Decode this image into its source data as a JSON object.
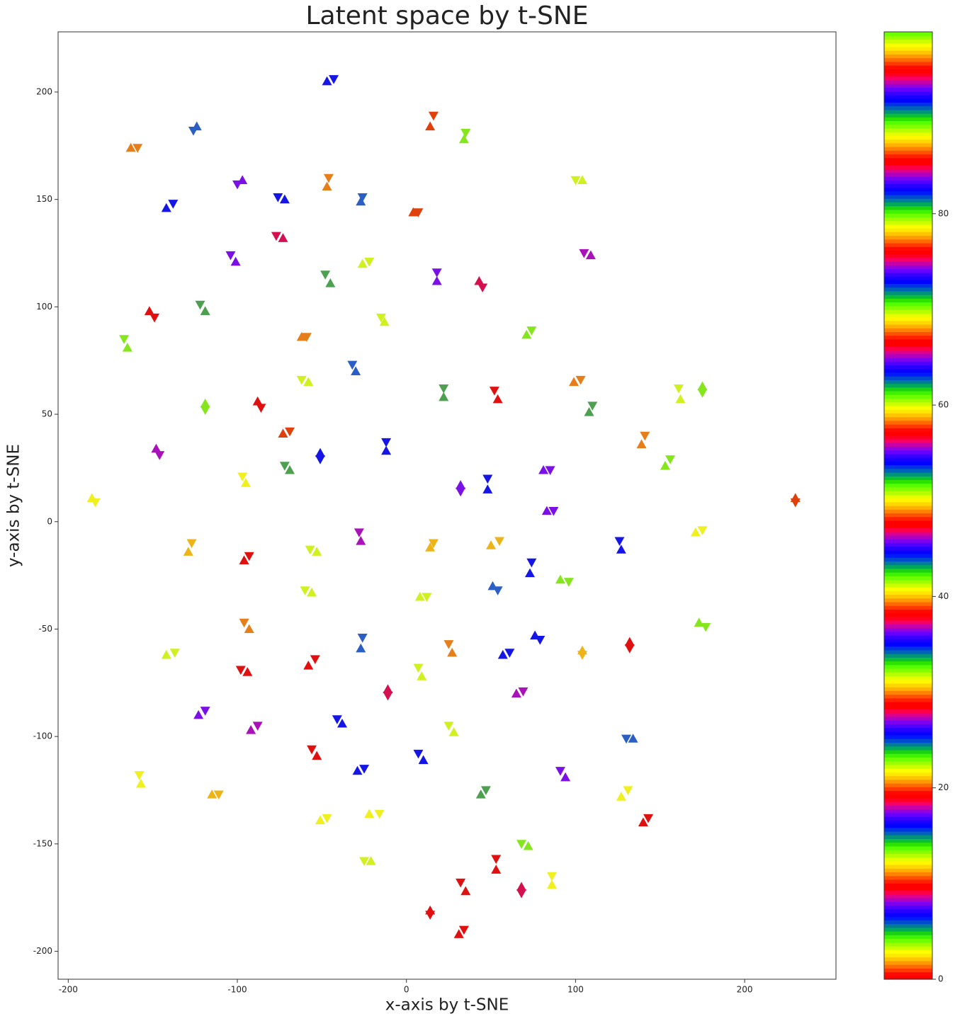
{
  "chart_data": {
    "type": "scatter",
    "title": "Latent space by t-SNE",
    "x_label": "x-axis by t-SNE",
    "y_label": "y-axis by t-SNE",
    "xlim": [
      -206,
      254
    ],
    "ylim": [
      -213,
      228
    ],
    "xticks": [
      -200,
      -100,
      0,
      100,
      200
    ],
    "yticks": [
      -200,
      -150,
      -100,
      -50,
      0,
      50,
      100,
      150,
      200
    ],
    "grid": false,
    "point_colors": [
      "#1515e6",
      "#e0400c",
      "#86e61e",
      "#2c5fc4",
      "#e67e1a",
      "#7a10e6",
      "#e67e1a",
      "#2c5fc4",
      "#1515e6",
      "#1515e6",
      "#e0400c",
      "#d0f020",
      "#d41050",
      "#a812b8",
      "#7a10e6",
      "#4ca050",
      "#d0f020",
      "#7a10e6",
      "#d41050",
      "#e01010",
      "#4ca050",
      "#d0f020",
      "#86e61e",
      "#86e61e",
      "#e67e1a",
      "#2c5fc4",
      "#d0f020",
      "#4ca050",
      "#e01010",
      "#e67e1a",
      "#4ca050",
      "#d0f020",
      "#86e61e",
      "#86e61e",
      "#e01010",
      "#e0400c",
      "#1515e6",
      "#e67e1a",
      "#a812b8",
      "#1515e6",
      "#4ca050",
      "#86e61e",
      "#7a10e6",
      "#f0f020",
      "#7a10e6",
      "#1515e6",
      "#f0f020",
      "#7a10e6",
      "#e0400c",
      "#f0f020",
      "#a812b8",
      "#ecb418",
      "#d0f020",
      "#ecb418",
      "#ecb418",
      "#1515e6",
      "#e01010",
      "#1515e6",
      "#86e61e",
      "#2c5fc4",
      "#d0f020",
      "#d0f020",
      "#e67e1a",
      "#86e61e",
      "#1515e6",
      "#2c5fc4",
      "#e67e1a",
      "#ecb418",
      "#e01010",
      "#d0f020",
      "#1515e6",
      "#e01010",
      "#e01010",
      "#d0f020",
      "#d41050",
      "#a812b8",
      "#7a10e6",
      "#a812b8",
      "#1515e6",
      "#d0f020",
      "#2c5fc4",
      "#e01010",
      "#1515e6",
      "#1515e6",
      "#7a10e6",
      "#f0f020",
      "#ecb418",
      "#4ca050",
      "#f0f020",
      "#e01010",
      "#f0f020",
      "#f0f020",
      "#86e61e",
      "#d0f020",
      "#e01010",
      "#f0f020",
      "#e01010",
      "#d41050",
      "#e01010",
      "#e01010"
    ],
    "series": [
      {
        "marker": "v",
        "x": [
          -43,
          16,
          35,
          -126,
          -159,
          -100,
          -46,
          -26,
          -76,
          -138,
          7,
          100,
          -77,
          105,
          -104,
          -48,
          -22,
          18,
          45,
          -149,
          -122,
          -15,
          74,
          -167,
          -59,
          -32,
          -62,
          22,
          52,
          103,
          110,
          161,
          175,
          -119,
          -86,
          -69,
          -12,
          141,
          -146,
          -51,
          -72,
          156,
          85,
          -97,
          32,
          48,
          -184,
          87,
          230,
          175,
          -28,
          -127,
          -57,
          16,
          55,
          126,
          -93,
          74,
          96,
          54,
          -60,
          12,
          -96,
          177,
          79,
          -26,
          25,
          104,
          132,
          -137,
          61,
          -98,
          -54,
          7,
          -11,
          69,
          -119,
          -88,
          -41,
          25,
          130,
          -56,
          7,
          -25,
          91,
          -158,
          -111,
          47,
          131,
          143,
          -16,
          -47,
          68,
          -25,
          53,
          86,
          32,
          68,
          14,
          34
        ],
        "values": [
          206,
          189,
          181,
          182,
          174,
          157,
          160,
          151,
          151,
          148,
          144,
          159,
          133,
          125,
          124,
          115,
          121,
          116,
          109,
          95,
          101,
          95,
          89,
          85,
          86,
          73,
          66,
          62,
          61,
          66,
          54,
          62,
          60,
          52,
          53,
          42,
          37,
          40,
          31,
          29,
          26,
          29,
          24,
          21,
          14,
          20,
          9,
          5,
          9,
          -4,
          -5,
          -10,
          -13,
          -10,
          -9,
          -9,
          -16,
          -19,
          -28,
          -32,
          -32,
          -35,
          -47,
          -49,
          -55,
          -54,
          -57,
          -62,
          -59,
          -61,
          -61,
          -69,
          -64,
          -68,
          -81,
          -79,
          -88,
          -95,
          -92,
          -95,
          -101,
          -106,
          -108,
          -115,
          -116,
          -118,
          -127,
          -125,
          -125,
          -138,
          -136,
          -138,
          -150,
          -158,
          -157,
          -165,
          -168,
          -173,
          -183,
          -190
        ]
      },
      {
        "marker": "^",
        "x": [
          -47,
          14,
          34,
          -124,
          -163,
          -97,
          -47,
          -27,
          -72,
          -142,
          4,
          104,
          -73,
          109,
          -101,
          -45,
          -26,
          18,
          43,
          -152,
          -119,
          -13,
          71,
          -165,
          -62,
          -30,
          -58,
          22,
          54,
          99,
          108,
          162,
          175,
          -119,
          -88,
          -73,
          -12,
          139,
          -148,
          -51,
          -69,
          153,
          81,
          -95,
          32,
          48,
          -186,
          83,
          230,
          171,
          -27,
          -129,
          -53,
          14,
          50,
          127,
          -96,
          73,
          91,
          51,
          -56,
          8,
          -93,
          173,
          76,
          -27,
          27,
          104,
          132,
          -142,
          57,
          -94,
          -58,
          9,
          -11,
          65,
          -123,
          -92,
          -38,
          28,
          134,
          -53,
          10,
          -29,
          94,
          -157,
          -115,
          44,
          127,
          140,
          -22,
          -51,
          72,
          -21,
          53,
          86,
          35,
          68,
          14,
          31
        ],
        "values": [
          205,
          184,
          178,
          184,
          174,
          159,
          156,
          149,
          150,
          146,
          144,
          159,
          132,
          124,
          121,
          111,
          120,
          112,
          112,
          98,
          98,
          93,
          87,
          81,
          86,
          70,
          65,
          58,
          57,
          65,
          51,
          57,
          63,
          55,
          56,
          41,
          33,
          36,
          34,
          32,
          24,
          26,
          24,
          18,
          17,
          15,
          11,
          5,
          11,
          -5,
          -9,
          -14,
          -14,
          -12,
          -11,
          -13,
          -18,
          -24,
          -27,
          -30,
          -33,
          -35,
          -50,
          -47,
          -53,
          -59,
          -61,
          -60,
          -56,
          -62,
          -62,
          -70,
          -67,
          -72,
          -78,
          -80,
          -90,
          -97,
          -94,
          -98,
          -101,
          -109,
          -111,
          -116,
          -119,
          -122,
          -127,
          -127,
          -128,
          -140,
          -136,
          -139,
          -151,
          -158,
          -162,
          -169,
          -172,
          -170,
          -181,
          -192
        ]
      }
    ],
    "colorbar": {
      "colormap": "prism",
      "clim": [
        0,
        99
      ],
      "ticks": [
        0,
        20,
        40,
        60,
        80
      ]
    }
  }
}
